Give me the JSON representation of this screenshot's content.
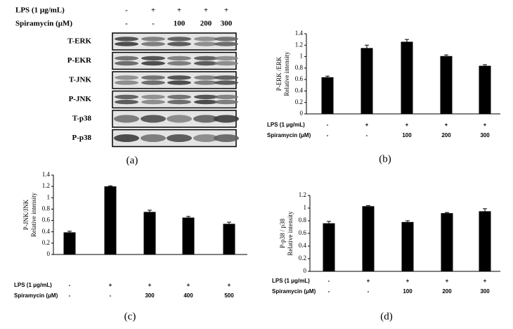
{
  "blot": {
    "label": "(a)",
    "treatments": [
      {
        "name": "LPS (1 μg/mL)",
        "labels": [
          "-",
          "+",
          "+",
          "+",
          "+"
        ]
      },
      {
        "name": "Spiramycin (μM)",
        "labels": [
          "-",
          "-",
          "100",
          "200",
          "300"
        ]
      }
    ],
    "rows": [
      "T-ERK",
      "P-EKR",
      "T-JNK",
      "P-JNK",
      "T-p38",
      "P-p38"
    ]
  },
  "chart_data": [
    {
      "type": "bar",
      "label": "(b)",
      "ylabel": [
        "P-ERK /ERK",
        "Relative intensity"
      ],
      "treatments": [
        {
          "name": "LPS (1 μg/mL)",
          "labels": [
            "-",
            "+",
            "+",
            "+",
            "+"
          ]
        },
        {
          "name": "Spiramycin (μM)",
          "labels": [
            "-",
            "-",
            "100",
            "200",
            "300"
          ]
        }
      ],
      "values": [
        0.64,
        1.15,
        1.26,
        1.01,
        0.84
      ],
      "errors": [
        0.02,
        0.05,
        0.04,
        0.02,
        0.02
      ],
      "color": "#000000",
      "ylim": [
        0,
        1.4
      ],
      "yticks": [
        0,
        0.2,
        0.4,
        0.6,
        0.8,
        1,
        1.2,
        1.4
      ]
    },
    {
      "type": "bar",
      "label": "(c)",
      "ylabel": [
        "P-JNK/JNK",
        "Relative intensity"
      ],
      "treatments": [
        {
          "name": "LPS (1 μg/mL)",
          "labels": [
            "-",
            "+",
            "+",
            "+",
            "+"
          ]
        },
        {
          "name": "Spiramycin (μM)",
          "labels": [
            "-",
            "-",
            "300",
            "400",
            "500"
          ]
        }
      ],
      "values": [
        0.39,
        1.2,
        0.75,
        0.65,
        0.54
      ],
      "errors": [
        0.02,
        0.01,
        0.03,
        0.02,
        0.03
      ],
      "color": "#000000",
      "ylim": [
        0,
        1.4
      ],
      "yticks": [
        0,
        0.2,
        0.4,
        0.6,
        0.8,
        1,
        1.2,
        1.4
      ]
    },
    {
      "type": "bar",
      "label": "(d)",
      "ylabel": [
        "P-p38 / p38",
        "Relative intensity"
      ],
      "treatments": [
        {
          "name": "LPS (1 μg/mL)",
          "labels": [
            "-",
            "+",
            "+",
            "+",
            "+"
          ]
        },
        {
          "name": "Spiramycin (μM)",
          "labels": [
            "-",
            "-",
            "100",
            "200",
            "300"
          ]
        }
      ],
      "values": [
        0.76,
        1.03,
        0.78,
        0.92,
        0.95
      ],
      "errors": [
        0.03,
        0.01,
        0.02,
        0.01,
        0.04
      ],
      "color": "#000000",
      "ylim": [
        0,
        1.2
      ],
      "yticks": [
        0,
        0.2,
        0.4,
        0.6,
        0.8,
        1,
        1.2
      ]
    }
  ]
}
